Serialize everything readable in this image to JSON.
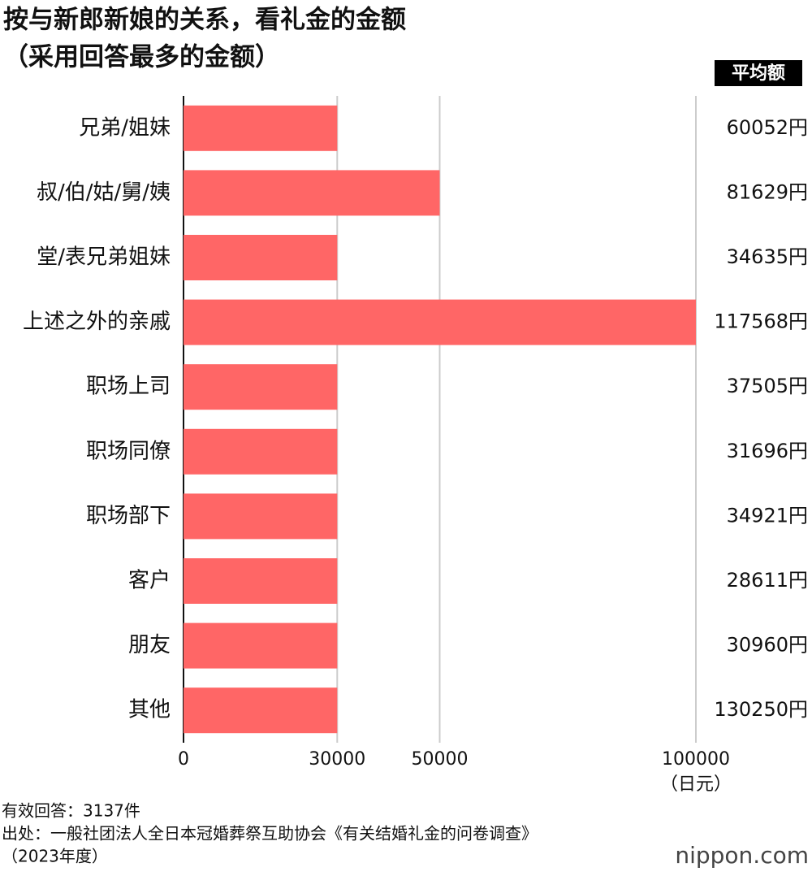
{
  "chart_data": {
    "type": "bar",
    "orientation": "horizontal",
    "title": [
      "按与新郎新娘的关系，看礼金的金额",
      "（采用回答最多的金额）"
    ],
    "categories": [
      "兄弟/姐妹",
      "叔/伯/姑/舅/姨",
      "堂/表兄弟姐妹",
      "上述之外的亲戚",
      "职场上司",
      "职场同僚",
      "职场部下",
      "客户",
      "朋友",
      "其他"
    ],
    "values": [
      30000,
      50000,
      30000,
      100000,
      30000,
      30000,
      30000,
      30000,
      30000,
      30000
    ],
    "color": "#ff6666",
    "xlim": [
      0,
      100000
    ],
    "xticks": [
      0,
      30000,
      50000,
      100000
    ],
    "grid": true,
    "x_unit": "（日元）",
    "average_header": "平均额",
    "averages": [
      "60052円",
      "81629円",
      "34635円",
      "117568円",
      "37505円",
      "31696円",
      "34921円",
      "28611円",
      "30960円",
      "130250円"
    ],
    "notes": [
      "有效回答：3137件",
      "出处：一般社团法人全日本冠婚葬祭互助协会《有关结婚礼金的问卷调查》",
      "（2023年度）"
    ],
    "logo": "nippon.com"
  }
}
